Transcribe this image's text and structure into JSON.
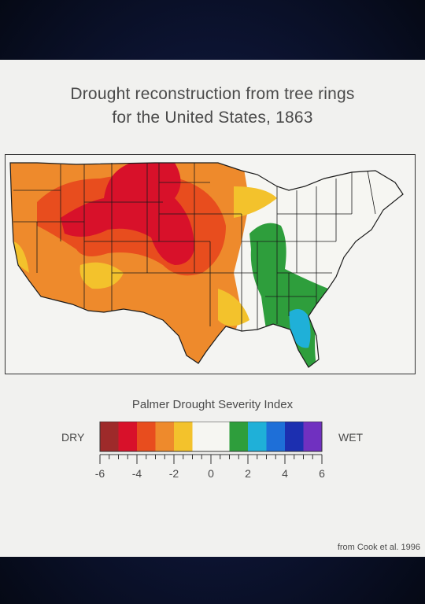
{
  "title": {
    "line1": "Drought reconstruction from tree rings",
    "line2": "for the United States, 1863"
  },
  "legend": {
    "title": "Palmer Drought Severity Index",
    "dry_label": "DRY",
    "wet_label": "WET",
    "tick_labels": [
      "-6",
      "-4",
      "-2",
      "0",
      "2",
      "4",
      "6"
    ],
    "range": [
      -6,
      6
    ],
    "color_classes": [
      {
        "range": [
          -6,
          -5
        ],
        "color": "#9e2a2a"
      },
      {
        "range": [
          -5,
          -4
        ],
        "color": "#d8112a"
      },
      {
        "range": [
          -4,
          -3
        ],
        "color": "#e84d1e"
      },
      {
        "range": [
          -3,
          -2
        ],
        "color": "#ee8a2c"
      },
      {
        "range": [
          -2,
          -1
        ],
        "color": "#f3c22c"
      },
      {
        "range": [
          -1,
          1
        ],
        "color": "#f6f6f2"
      },
      {
        "range": [
          1,
          2
        ],
        "color": "#2e9e3c"
      },
      {
        "range": [
          2,
          3
        ],
        "color": "#1fb0d8"
      },
      {
        "range": [
          3,
          4
        ],
        "color": "#1e6fd8"
      },
      {
        "range": [
          4,
          5
        ],
        "color": "#1c2fb0"
      },
      {
        "range": [
          5,
          6
        ],
        "color": "#7030c0"
      }
    ]
  },
  "credit": "from Cook et al. 1996"
}
